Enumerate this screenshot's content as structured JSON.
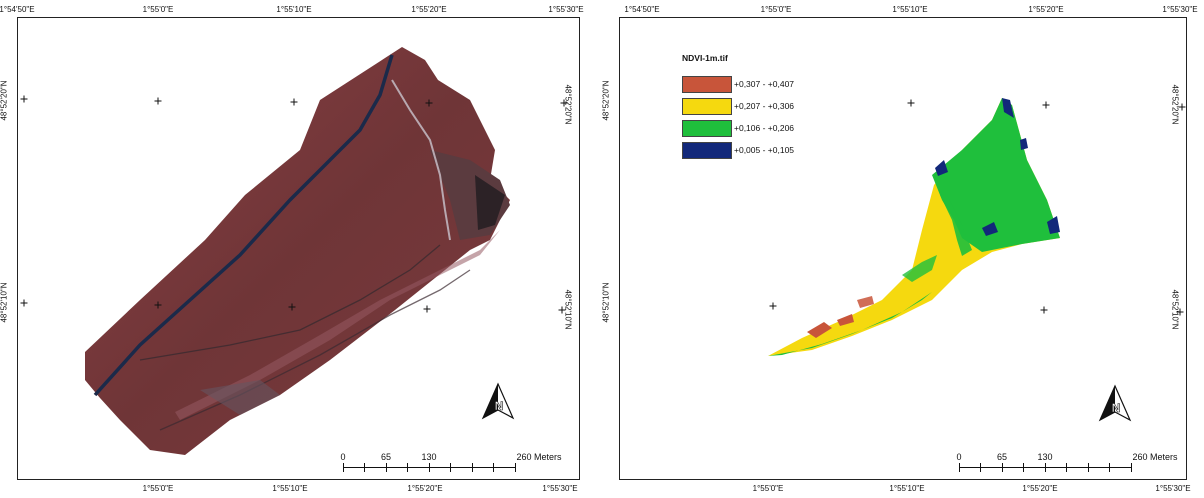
{
  "left_map": {
    "top_ticks": [
      "1°54'50\"E",
      "1°55'0\"E",
      "1°55'10\"E",
      "1°55'20\"E",
      "1°55'30\"E"
    ],
    "bottom_ticks": [
      "1°55'0\"E",
      "1°55'10\"E",
      "1°55'20\"E",
      "1°55'30\"E"
    ],
    "left_ticks": [
      "48°52'20\"N",
      "48°52'10\"N"
    ],
    "right_ticks": [
      "48°52'20\"N",
      "48°52'10\"N"
    ],
    "scale": {
      "labels": [
        "0",
        "65",
        "130",
        "260 Meters"
      ]
    }
  },
  "right_map": {
    "top_ticks": [
      "1°54'50\"E",
      "1°55'0\"E",
      "1°55'10\"E",
      "1°55'20\"E",
      "1°55'30\"E"
    ],
    "bottom_ticks": [
      "1°55'0\"E",
      "1°55'10\"E",
      "1°55'20\"E",
      "1°55'30\"E"
    ],
    "left_ticks": [
      "48°52'20\"N",
      "48°52'10\"N"
    ],
    "right_ticks": [
      "48°52'20\"N",
      "48°52'10\"N"
    ],
    "legend": {
      "title": "NDVI-1m.tif",
      "items": [
        {
          "label": "+0,307 - +0,407",
          "color": "#c8553a"
        },
        {
          "label": "+0,207 - +0,306",
          "color": "#f5d90f"
        },
        {
          "label": "+0,106 - +0,206",
          "color": "#1fbf3c"
        },
        {
          "label": "+0,005 - +0,105",
          "color": "#12287a"
        }
      ]
    },
    "scale": {
      "labels": [
        "0",
        "65",
        "130",
        "260 Meters"
      ]
    }
  },
  "colors": {
    "field_red": "#7a3a3c",
    "field_dark": "#5a2a2e",
    "road_blue": "#1b2a4a",
    "ndvi_high": "#c8553a",
    "ndvi_mid_high": "#f5d90f",
    "ndvi_mid_low": "#1fbf3c",
    "ndvi_low": "#12287a"
  },
  "icons": {
    "north_arrow": "north-arrow-icon"
  }
}
